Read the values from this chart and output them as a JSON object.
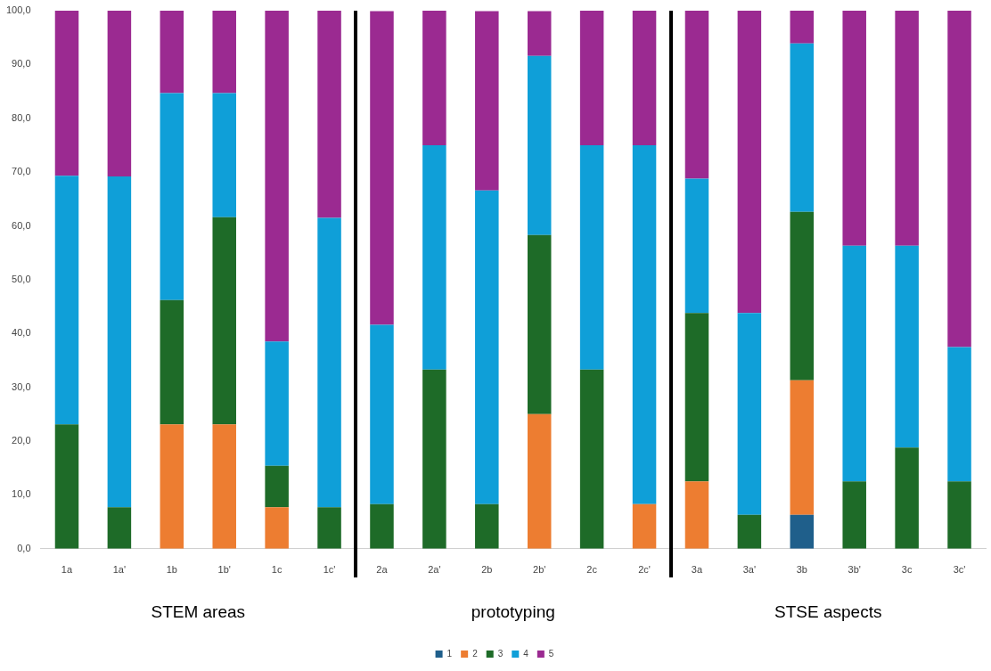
{
  "chart_data": {
    "type": "bar",
    "stacked": true,
    "legend": "bottom",
    "grid": false,
    "categories": [
      "1a",
      "1a'",
      "1b",
      "1b'",
      "1c",
      "1c'",
      "2a",
      "2a'",
      "2b",
      "2b'",
      "2c",
      "2c'",
      "3a",
      "3a'",
      "3b",
      "3b'",
      "3c",
      "3c'"
    ],
    "series": [
      {
        "name": "1",
        "color": "#1f5f8b",
        "values": [
          null,
          null,
          null,
          null,
          null,
          null,
          null,
          null,
          null,
          null,
          null,
          null,
          null,
          null,
          6.3,
          null,
          null,
          null
        ]
      },
      {
        "name": "2",
        "color": "#ed7d31",
        "values": [
          null,
          null,
          23.1,
          23.1,
          7.7,
          null,
          null,
          null,
          null,
          25.0,
          null,
          8.3,
          12.5,
          null,
          25.0,
          null,
          null,
          null
        ]
      },
      {
        "name": "3",
        "color": "#1e6b28",
        "values": [
          23.1,
          7.7,
          23.1,
          38.5,
          7.7,
          7.7,
          8.3,
          33.3,
          8.3,
          33.3,
          33.3,
          null,
          31.3,
          6.3,
          31.3,
          12.5,
          18.8,
          12.5
        ]
      },
      {
        "name": "4",
        "color": "#0f9fd8",
        "values": [
          46.2,
          61.5,
          38.5,
          23.1,
          23.1,
          53.8,
          33.3,
          41.7,
          58.3,
          33.3,
          41.7,
          66.7,
          25.0,
          37.5,
          31.3,
          43.8,
          37.5,
          25.0
        ]
      },
      {
        "name": "5",
        "color": "#9b2a91",
        "values": [
          30.8,
          30.8,
          15.4,
          15.4,
          61.5,
          38.5,
          58.3,
          25.0,
          33.3,
          8.3,
          25.0,
          25.0,
          31.3,
          56.3,
          6.3,
          43.8,
          43.8,
          62.5
        ]
      }
    ],
    "ylim": [
      0,
      100
    ],
    "yticks": [
      {
        "value": 0,
        "label": "0,0"
      },
      {
        "value": 10,
        "label": "10,0"
      },
      {
        "value": 20,
        "label": "20,0"
      },
      {
        "value": 30,
        "label": "30,0"
      },
      {
        "value": 40,
        "label": "40,0"
      },
      {
        "value": 50,
        "label": "50,0"
      },
      {
        "value": 60,
        "label": "60,0"
      },
      {
        "value": 70,
        "label": "70,0"
      },
      {
        "value": 80,
        "label": "80,0"
      },
      {
        "value": 90,
        "label": "90,0"
      },
      {
        "value": 100,
        "label": "100,0"
      }
    ],
    "annotations": [
      "STEM areas",
      "prototyping",
      "STSE aspects"
    ]
  }
}
